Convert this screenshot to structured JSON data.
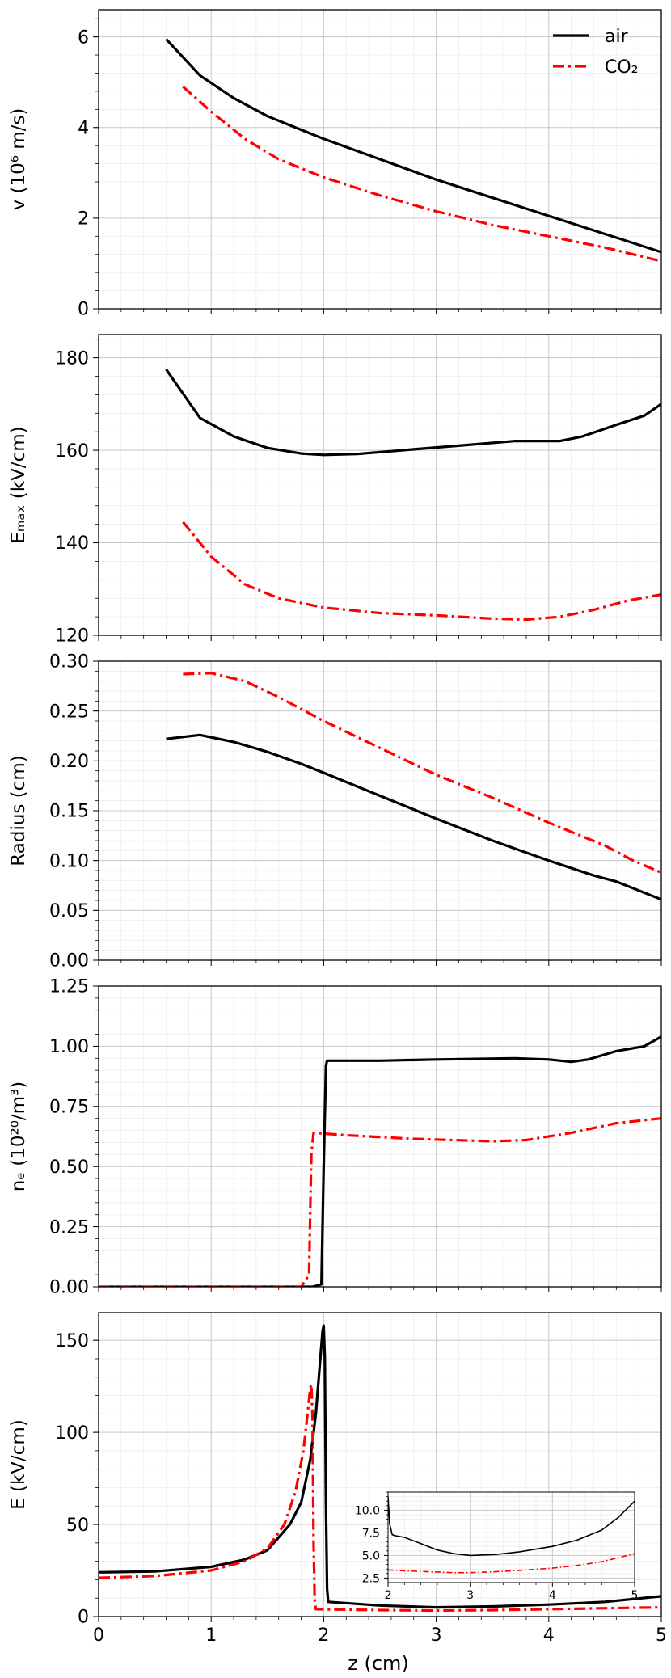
{
  "figure": {
    "shared_xlabel": "z (cm)",
    "x_ticks": [
      "0",
      "1",
      "2",
      "3",
      "4",
      "5"
    ],
    "legend": [
      {
        "label": "air",
        "color": "#000000",
        "style": "solid"
      },
      {
        "label": "CO₂",
        "color": "#ff0000",
        "style": "dashdot"
      }
    ]
  },
  "chart_data": [
    {
      "type": "line",
      "ylabel": "v (10⁶ m/s)",
      "xlim": [
        0,
        5
      ],
      "ylim": [
        0,
        6.6
      ],
      "y_ticks": [
        0,
        2,
        4,
        6
      ],
      "y_tick_labels": [
        "0",
        "2",
        "4",
        "6"
      ],
      "grid": true,
      "legend_position": "top-right",
      "series": [
        {
          "name": "air",
          "color": "#000000",
          "style": "solid",
          "x": [
            0.6,
            0.9,
            1.2,
            1.5,
            1.8,
            2.0,
            2.5,
            3.0,
            3.5,
            4.0,
            4.5,
            5.0
          ],
          "y": [
            5.95,
            5.15,
            4.65,
            4.25,
            3.95,
            3.75,
            3.3,
            2.85,
            2.45,
            2.05,
            1.65,
            1.25
          ]
        },
        {
          "name": "CO₂",
          "color": "#ff0000",
          "style": "dashdot",
          "x": [
            0.75,
            1.0,
            1.3,
            1.6,
            2.0,
            2.5,
            3.0,
            3.5,
            4.0,
            4.5,
            5.0
          ],
          "y": [
            4.9,
            4.35,
            3.75,
            3.3,
            2.9,
            2.5,
            2.15,
            1.85,
            1.6,
            1.35,
            1.05
          ]
        }
      ]
    },
    {
      "type": "line",
      "ylabel": "Eₘₐₓ (kV/cm)",
      "xlim": [
        0,
        5
      ],
      "ylim": [
        120,
        185
      ],
      "y_ticks": [
        120,
        140,
        160,
        180
      ],
      "y_tick_labels": [
        "120",
        "140",
        "160",
        "180"
      ],
      "grid": true,
      "series": [
        {
          "name": "air",
          "color": "#000000",
          "style": "solid",
          "x": [
            0.6,
            0.9,
            1.2,
            1.5,
            1.8,
            2.0,
            2.3,
            2.8,
            3.2,
            3.7,
            4.1,
            4.3,
            4.6,
            4.85,
            5.0
          ],
          "y": [
            177.5,
            167,
            163,
            160.5,
            159.3,
            159,
            159.2,
            160.2,
            161,
            162,
            162,
            163,
            165.5,
            167.5,
            170
          ]
        },
        {
          "name": "CO₂",
          "color": "#ff0000",
          "style": "dashdot",
          "x": [
            0.75,
            1.0,
            1.3,
            1.6,
            2.0,
            2.5,
            3.0,
            3.5,
            3.8,
            4.1,
            4.4,
            4.7,
            5.0
          ],
          "y": [
            144.5,
            137,
            131,
            128,
            126,
            124.8,
            124.3,
            123.6,
            123.4,
            124,
            125.5,
            127.5,
            128.8
          ]
        }
      ]
    },
    {
      "type": "line",
      "ylabel": "Radius (cm)",
      "xlim": [
        0,
        5
      ],
      "ylim": [
        0,
        0.3
      ],
      "y_ticks": [
        0,
        0.05,
        0.1,
        0.15,
        0.2,
        0.25,
        0.3
      ],
      "y_tick_labels": [
        "0.00",
        "0.05",
        "0.10",
        "0.15",
        "0.20",
        "0.25",
        "0.30"
      ],
      "grid": true,
      "series": [
        {
          "name": "air",
          "color": "#000000",
          "style": "solid",
          "x": [
            0.6,
            0.9,
            1.2,
            1.5,
            1.8,
            2.0,
            2.5,
            3.0,
            3.5,
            4.0,
            4.4,
            4.6,
            5.0
          ],
          "y": [
            0.222,
            0.226,
            0.219,
            0.209,
            0.197,
            0.188,
            0.165,
            0.142,
            0.12,
            0.1,
            0.085,
            0.079,
            0.061
          ]
        },
        {
          "name": "CO₂",
          "color": "#ff0000",
          "style": "dashdot",
          "x": [
            0.75,
            1.0,
            1.3,
            1.6,
            2.0,
            2.5,
            3.0,
            3.5,
            4.0,
            4.5,
            4.75,
            5.0
          ],
          "y": [
            0.287,
            0.288,
            0.28,
            0.264,
            0.24,
            0.213,
            0.186,
            0.163,
            0.138,
            0.115,
            0.1,
            0.088
          ]
        }
      ]
    },
    {
      "type": "line",
      "ylabel": "nₑ (10²⁰/m³)",
      "xlim": [
        0,
        5
      ],
      "ylim": [
        0,
        1.25
      ],
      "y_ticks": [
        0,
        0.25,
        0.5,
        0.75,
        1.0,
        1.25
      ],
      "y_tick_labels": [
        "0.00",
        "0.25",
        "0.50",
        "0.75",
        "1.00",
        "1.25"
      ],
      "grid": true,
      "series": [
        {
          "name": "air",
          "color": "#000000",
          "style": "solid",
          "x": [
            0,
            1.9,
            1.98,
            2.0,
            2.02,
            2.03,
            2.5,
            3.0,
            3.7,
            4.0,
            4.2,
            4.35,
            4.6,
            4.85,
            5.0
          ],
          "y": [
            0.0,
            0.0,
            0.01,
            0.5,
            0.92,
            0.94,
            0.94,
            0.945,
            0.95,
            0.945,
            0.935,
            0.945,
            0.98,
            1.0,
            1.04
          ]
        },
        {
          "name": "CO₂",
          "color": "#ff0000",
          "style": "dashdot",
          "x": [
            0,
            1.8,
            1.87,
            1.89,
            1.91,
            2.2,
            2.8,
            3.5,
            3.8,
            4.2,
            4.6,
            5.0
          ],
          "y": [
            0.0,
            0.0,
            0.05,
            0.55,
            0.64,
            0.63,
            0.615,
            0.605,
            0.61,
            0.64,
            0.68,
            0.7
          ]
        }
      ]
    },
    {
      "type": "line",
      "ylabel": "E (kV/cm)",
      "xlabel": "z (cm)",
      "xlim": [
        0,
        5
      ],
      "ylim": [
        0,
        165
      ],
      "y_ticks": [
        0,
        50,
        100,
        150
      ],
      "y_tick_labels": [
        "0",
        "50",
        "100",
        "150"
      ],
      "grid": true,
      "series": [
        {
          "name": "air",
          "color": "#000000",
          "style": "solid",
          "x": [
            0,
            0.5,
            1.0,
            1.3,
            1.5,
            1.7,
            1.8,
            1.88,
            1.93,
            1.97,
            1.99,
            2.0,
            2.01,
            2.02,
            2.03,
            2.04,
            2.5,
            3.0,
            3.5,
            4.0,
            4.5,
            5.0
          ],
          "y": [
            24,
            24.5,
            27,
            31,
            36,
            50,
            62,
            85,
            110,
            140,
            155,
            158,
            140,
            60,
            15,
            8,
            6,
            5,
            5.5,
            6.5,
            8,
            11
          ]
        },
        {
          "name": "CO₂",
          "color": "#ff0000",
          "style": "dashdot",
          "x": [
            0,
            0.5,
            1.0,
            1.3,
            1.5,
            1.65,
            1.75,
            1.82,
            1.86,
            1.88,
            1.89,
            1.9,
            1.91,
            1.92,
            1.93,
            2.5,
            3.0,
            3.5,
            4.0,
            4.5,
            5.0
          ],
          "y": [
            21,
            22,
            25,
            30,
            37,
            50,
            68,
            90,
            112,
            124,
            126,
            110,
            40,
            8,
            4,
            3.5,
            3.3,
            3.5,
            4,
            4.5,
            5
          ]
        }
      ]
    },
    {
      "type": "line",
      "role": "inset",
      "xlim": [
        2,
        5
      ],
      "ylim": [
        2,
        12
      ],
      "x_ticks": [
        2,
        3,
        4,
        5
      ],
      "x_tick_labels": [
        "2",
        "3",
        "4",
        "5"
      ],
      "y_ticks": [
        2.5,
        5.0,
        7.5,
        10.0
      ],
      "y_tick_labels": [
        "2.5",
        "5.0",
        "7.5",
        "10.0"
      ],
      "grid": true,
      "series": [
        {
          "name": "air",
          "color": "#000000",
          "style": "solid",
          "x": [
            2.0,
            2.02,
            2.05,
            2.08,
            2.2,
            2.4,
            2.6,
            2.8,
            3.0,
            3.3,
            3.6,
            4.0,
            4.3,
            4.6,
            4.8,
            5.0
          ],
          "y": [
            11.5,
            8.5,
            7.3,
            7.2,
            7.0,
            6.3,
            5.6,
            5.2,
            5.0,
            5.1,
            5.4,
            6.0,
            6.7,
            7.8,
            9.2,
            11.0
          ]
        },
        {
          "name": "CO₂",
          "color": "#ff0000",
          "style": "dashdot",
          "x": [
            2.0,
            2.2,
            2.5,
            2.8,
            3.0,
            3.3,
            3.6,
            4.0,
            4.3,
            4.6,
            5.0
          ],
          "y": [
            3.4,
            3.3,
            3.2,
            3.1,
            3.1,
            3.2,
            3.35,
            3.6,
            3.9,
            4.3,
            5.2
          ]
        }
      ]
    }
  ]
}
